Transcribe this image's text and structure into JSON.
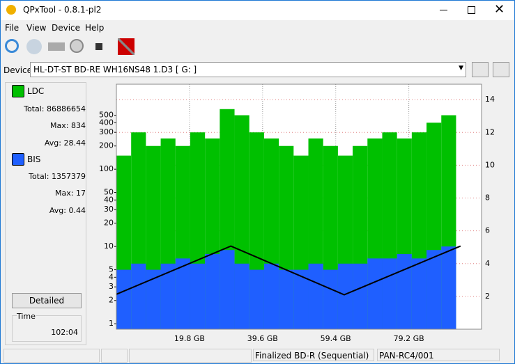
{
  "window": {
    "title": "QPxTool - 0.8.1-pl2"
  },
  "menu": [
    "File",
    "View",
    "Device",
    "Help"
  ],
  "device": {
    "label": "Device:",
    "value": "HL-DT-ST BD-RE  WH16NS48  1.D3 [ G: ]"
  },
  "stats": {
    "ldc": {
      "total_label": "Total:",
      "total": 86886654,
      "max_label": "Max:",
      "max": 834,
      "avg_label": "Avg:",
      "avg": 28.44
    },
    "bis": {
      "total_label": "Total:",
      "total": 1357379,
      "max_label": "Max:",
      "max": 17,
      "avg_label": "Avg:",
      "avg": 0.44
    }
  },
  "detailed": "Detailed",
  "time": {
    "label": "Time",
    "value": "102:04"
  },
  "status": [
    "Finalized BD-R (Sequential)",
    "PAN-RC4/001"
  ],
  "chart_data": {
    "type": "combo",
    "xlim": [
      0,
      98.9
    ],
    "xticks": [
      {
        "value": 19.8,
        "label": "19.8 GB"
      },
      {
        "value": 39.6,
        "label": "39.6 GB"
      },
      {
        "value": 59.4,
        "label": "59.4 GB"
      },
      {
        "value": 79.2,
        "label": "79.2 GB"
      }
    ],
    "ylim": [
      0.85,
      1260
    ],
    "log_scale": true,
    "yticks": [
      1,
      2,
      3,
      4,
      5,
      10,
      20,
      30,
      40,
      50,
      100,
      200,
      300,
      400,
      500
    ],
    "y2lim": [
      0,
      14.94
    ],
    "y2ticks": [
      2,
      4,
      6,
      8,
      10,
      12,
      14
    ],
    "grid": true,
    "series": [
      {
        "name": "LDC",
        "type": "bar",
        "color": "#00c000",
        "x": [
          0,
          4,
          8,
          12,
          16,
          20,
          24,
          28,
          32,
          36,
          40,
          44,
          48,
          52,
          56,
          60,
          64,
          68,
          72,
          76,
          80,
          84,
          88
        ],
        "values": [
          150,
          300,
          200,
          250,
          200,
          300,
          250,
          600,
          500,
          300,
          250,
          200,
          150,
          250,
          200,
          150,
          200,
          250,
          300,
          250,
          300,
          400,
          500
        ]
      },
      {
        "name": "BIS",
        "type": "bar",
        "color": "#1f5fff",
        "x": [
          0,
          4,
          8,
          12,
          16,
          20,
          24,
          28,
          32,
          36,
          40,
          44,
          48,
          52,
          56,
          60,
          64,
          68,
          72,
          76,
          80,
          84,
          88
        ],
        "values": [
          5,
          6,
          5,
          6,
          7,
          6,
          8,
          9,
          6,
          5,
          6,
          5,
          5,
          6,
          5,
          6,
          6,
          7,
          7,
          8,
          7,
          9,
          10
        ]
      },
      {
        "type": "line",
        "axis": "y2",
        "color": "#000000",
        "x": [
          0,
          31,
          61.7,
          93.2
        ],
        "values": [
          2.13,
          5.07,
          2.1,
          5.07
        ]
      }
    ]
  }
}
